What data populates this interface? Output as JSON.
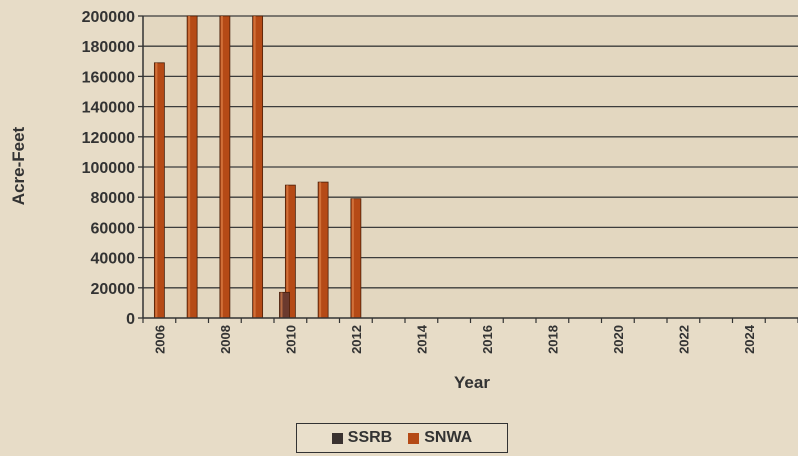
{
  "chart_data": {
    "type": "bar",
    "title": "",
    "xlabel": "Year",
    "ylabel": "Acre-Feet",
    "ylim": [
      0,
      200000
    ],
    "yticks": [
      0,
      20000,
      40000,
      60000,
      80000,
      100000,
      120000,
      140000,
      160000,
      180000,
      200000
    ],
    "ytick_labels": [
      "0",
      "20000",
      "40000",
      "60000",
      "80000",
      "100000",
      "120000",
      "140000",
      "160000",
      "180000",
      "200000"
    ],
    "categories": [
      "2006",
      "2007",
      "2008",
      "2009",
      "2010",
      "2011",
      "2012",
      "2013",
      "2014",
      "2015",
      "2016",
      "2017",
      "2018",
      "2019",
      "2020",
      "2021",
      "2022",
      "2023",
      "2024",
      "2025"
    ],
    "x_tick_labels": [
      "2006",
      "2008",
      "2010",
      "2012",
      "2014",
      "2016",
      "2018",
      "2020",
      "2022",
      "2024"
    ],
    "grid": true,
    "legend_position": "bottom-center",
    "series": [
      {
        "name": "SSRB",
        "color": "#3a3230",
        "values": [
          0,
          0,
          0,
          0,
          0,
          0,
          0,
          0,
          0,
          0,
          0,
          0,
          0,
          0,
          0,
          0,
          0,
          0,
          0,
          0
        ]
      },
      {
        "name": "SNWA",
        "color": "#b54a16",
        "values": [
          169000,
          200000,
          200000,
          200000,
          88000,
          90000,
          79000,
          0,
          0,
          0,
          0,
          0,
          0,
          0,
          0,
          0,
          0,
          0,
          0,
          0
        ]
      },
      {
        "name": "",
        "color": "#6b3a2e",
        "values": [
          0,
          0,
          0,
          0,
          17000,
          0,
          0,
          0,
          0,
          0,
          0,
          0,
          0,
          0,
          0,
          0,
          0,
          0,
          0,
          0
        ]
      }
    ]
  }
}
